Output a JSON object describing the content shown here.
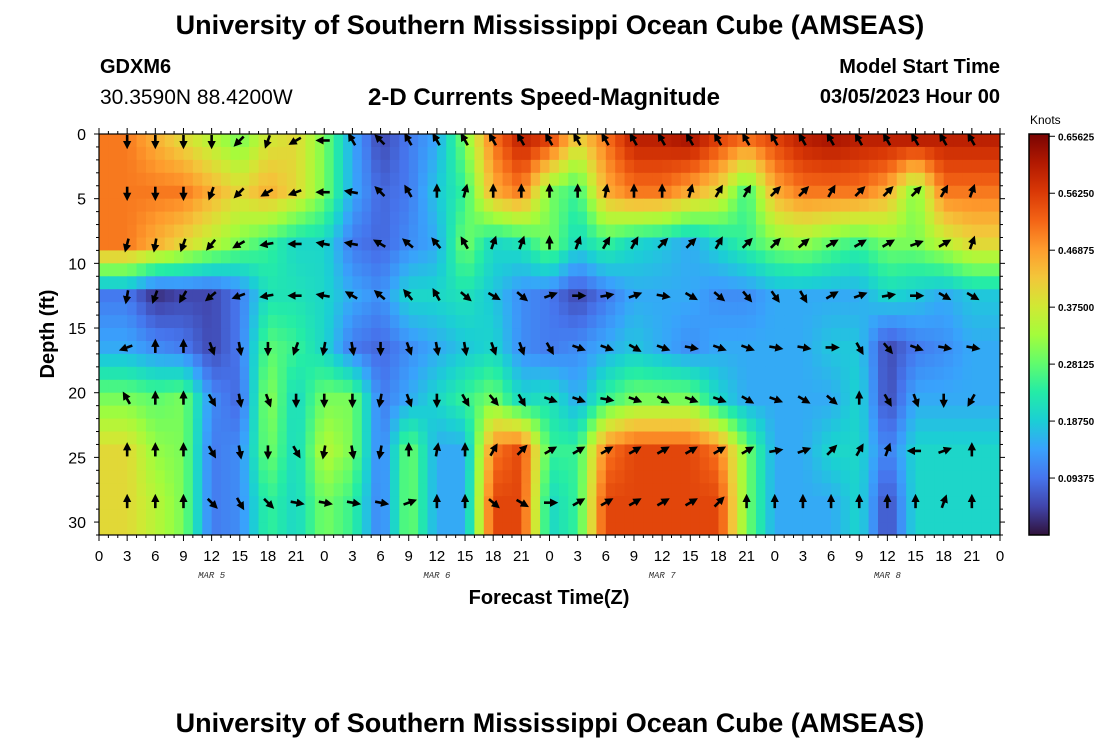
{
  "header": {
    "title": "University of Southern Mississippi Ocean Cube (AMSEAS)",
    "station_id": "GDXM6",
    "station_coords": "30.3590N  88.4200W",
    "chart_title": "2-D Currents Speed-Magnitude",
    "start_label": "Model Start Time",
    "start_value": "03/05/2023 Hour 00"
  },
  "footer": {
    "title": "University of Southern Mississippi Ocean Cube (AMSEAS)"
  },
  "colors": {
    "scale": [
      "#30123b",
      "#4145ab",
      "#4675ed",
      "#39a2fc",
      "#1bcfd4",
      "#24eca6",
      "#61fc6c",
      "#a4fc3b",
      "#d1e834",
      "#f3c63a",
      "#fe9b2d",
      "#f36315",
      "#d93806",
      "#b11901",
      "#7a0403"
    ]
  },
  "chart_data": {
    "type": "heatmap",
    "title": "2-D Currents Speed-Magnitude",
    "xlabel": "Forecast Time(Z)",
    "ylabel": "Depth (ft)",
    "x_ticks": [
      "0",
      "3",
      "6",
      "9",
      "12",
      "15",
      "18",
      "21",
      "0",
      "3",
      "6",
      "9",
      "12",
      "15",
      "18",
      "21",
      "0",
      "3",
      "6",
      "9",
      "12",
      "15",
      "18",
      "21",
      "0",
      "3",
      "6",
      "9",
      "12",
      "15",
      "18",
      "21",
      "0"
    ],
    "date_labels": [
      {
        "hour": 12,
        "label": "MAR 5"
      },
      {
        "hour": 36,
        "label": "MAR 6"
      },
      {
        "hour": 60,
        "label": "MAR 7"
      },
      {
        "hour": 84,
        "label": "MAR 8"
      }
    ],
    "xlim": [
      0,
      96
    ],
    "ylim": [
      0,
      31
    ],
    "y_ticks": [
      0,
      5,
      10,
      15,
      20,
      25,
      30
    ],
    "colorbar": {
      "label": "Knots",
      "min": 0,
      "max": 0.66,
      "ticks": [
        "0.65625",
        "0.56250",
        "0.46875",
        "0.37500",
        "0.28125",
        "0.18750",
        "0.09375"
      ]
    },
    "hours": [
      3,
      6,
      9,
      12,
      15,
      18,
      21,
      24,
      27,
      30,
      33,
      36,
      39,
      42,
      45,
      48,
      51,
      54,
      57,
      60,
      63,
      66,
      69,
      72,
      75,
      78,
      81,
      84,
      87,
      90,
      93
    ],
    "depths": [
      0.5,
      4.5,
      8.5,
      12.5,
      16.5,
      20.5,
      24.5,
      28.5
    ],
    "speed_knots": [
      [
        0.5,
        0.45,
        0.4,
        0.35,
        0.3,
        0.38,
        0.4,
        0.3,
        0.15,
        0.05,
        0.1,
        0.15,
        0.3,
        0.5,
        0.6,
        0.55,
        0.4,
        0.5,
        0.6,
        0.6,
        0.62,
        0.55,
        0.5,
        0.55,
        0.6,
        0.62,
        0.6,
        0.6,
        0.6,
        0.6,
        0.6
      ],
      [
        0.5,
        0.5,
        0.5,
        0.45,
        0.4,
        0.45,
        0.4,
        0.3,
        0.15,
        0.08,
        0.1,
        0.18,
        0.25,
        0.45,
        0.5,
        0.3,
        0.25,
        0.45,
        0.5,
        0.5,
        0.45,
        0.4,
        0.25,
        0.45,
        0.5,
        0.5,
        0.5,
        0.45,
        0.3,
        0.5,
        0.5
      ],
      [
        0.5,
        0.45,
        0.4,
        0.35,
        0.3,
        0.25,
        0.2,
        0.2,
        0.1,
        0.08,
        0.12,
        0.15,
        0.3,
        0.2,
        0.22,
        0.3,
        0.2,
        0.25,
        0.2,
        0.18,
        0.15,
        0.2,
        0.25,
        0.3,
        0.32,
        0.28,
        0.25,
        0.3,
        0.3,
        0.35,
        0.4
      ],
      [
        0.1,
        0.03,
        0.05,
        0.05,
        0.1,
        0.22,
        0.22,
        0.2,
        0.15,
        0.12,
        0.2,
        0.2,
        0.22,
        0.18,
        0.12,
        0.1,
        0.05,
        0.1,
        0.15,
        0.15,
        0.15,
        0.12,
        0.12,
        0.15,
        0.15,
        0.15,
        0.15,
        0.2,
        0.18,
        0.15,
        0.18
      ],
      [
        0.15,
        0.12,
        0.1,
        0.05,
        0.1,
        0.28,
        0.25,
        0.2,
        0.1,
        0.08,
        0.12,
        0.15,
        0.18,
        0.2,
        0.12,
        0.1,
        0.12,
        0.15,
        0.18,
        0.15,
        0.12,
        0.15,
        0.15,
        0.15,
        0.15,
        0.18,
        0.18,
        0.05,
        0.1,
        0.12,
        0.15
      ],
      [
        0.3,
        0.28,
        0.3,
        0.12,
        0.08,
        0.32,
        0.2,
        0.3,
        0.3,
        0.1,
        0.15,
        0.2,
        0.25,
        0.3,
        0.2,
        0.22,
        0.15,
        0.25,
        0.3,
        0.3,
        0.3,
        0.2,
        0.15,
        0.15,
        0.15,
        0.15,
        0.2,
        0.05,
        0.15,
        0.15,
        0.15
      ],
      [
        0.4,
        0.32,
        0.3,
        0.1,
        0.12,
        0.3,
        0.2,
        0.35,
        0.3,
        0.1,
        0.3,
        0.15,
        0.15,
        0.5,
        0.55,
        0.25,
        0.25,
        0.5,
        0.55,
        0.55,
        0.55,
        0.5,
        0.3,
        0.15,
        0.15,
        0.2,
        0.2,
        0.1,
        0.2,
        0.2,
        0.2
      ],
      [
        0.4,
        0.35,
        0.3,
        0.1,
        0.12,
        0.25,
        0.2,
        0.3,
        0.25,
        0.1,
        0.3,
        0.15,
        0.15,
        0.55,
        0.55,
        0.2,
        0.25,
        0.55,
        0.55,
        0.55,
        0.55,
        0.55,
        0.3,
        0.15,
        0.15,
        0.15,
        0.2,
        0.05,
        0.2,
        0.2,
        0.2
      ]
    ],
    "direction_deg": [
      [
        180,
        180,
        180,
        180,
        225,
        200,
        240,
        270,
        330,
        315,
        330,
        330,
        330,
        330,
        330,
        330,
        330,
        330,
        330,
        330,
        330,
        330,
        330,
        330,
        330,
        330,
        330,
        330,
        330,
        330,
        330
      ],
      [
        180,
        180,
        180,
        200,
        225,
        240,
        250,
        270,
        280,
        315,
        330,
        0,
        15,
        0,
        0,
        0,
        0,
        10,
        0,
        0,
        15,
        30,
        30,
        45,
        45,
        30,
        45,
        45,
        45,
        30,
        20
      ],
      [
        195,
        190,
        200,
        220,
        240,
        260,
        270,
        280,
        280,
        300,
        310,
        320,
        330,
        20,
        20,
        0,
        20,
        30,
        30,
        45,
        45,
        30,
        45,
        45,
        50,
        60,
        60,
        60,
        70,
        60,
        20
      ],
      [
        190,
        200,
        210,
        230,
        250,
        260,
        270,
        280,
        300,
        310,
        320,
        330,
        130,
        120,
        130,
        70,
        90,
        80,
        70,
        100,
        120,
        130,
        140,
        145,
        150,
        60,
        70,
        80,
        90,
        120,
        120
      ],
      [
        250,
        0,
        0,
        160,
        170,
        180,
        200,
        190,
        170,
        180,
        160,
        170,
        170,
        160,
        160,
        150,
        110,
        110,
        120,
        110,
        100,
        110,
        110,
        100,
        100,
        90,
        150,
        140,
        110,
        100,
        100
      ],
      [
        330,
        0,
        0,
        150,
        170,
        160,
        180,
        180,
        180,
        190,
        160,
        180,
        150,
        140,
        150,
        110,
        110,
        100,
        110,
        120,
        110,
        110,
        120,
        110,
        120,
        130,
        0,
        150,
        160,
        180,
        210
      ],
      [
        0,
        0,
        0,
        150,
        170,
        180,
        150,
        190,
        170,
        190,
        0,
        10,
        0,
        30,
        45,
        60,
        60,
        60,
        60,
        60,
        60,
        60,
        60,
        80,
        70,
        45,
        30,
        20,
        270,
        70,
        0
      ],
      [
        0,
        0,
        0,
        135,
        150,
        135,
        100,
        100,
        100,
        100,
        70,
        0,
        0,
        130,
        120,
        90,
        60,
        60,
        60,
        60,
        60,
        45,
        0,
        0,
        0,
        0,
        0,
        0,
        0,
        20,
        0
      ]
    ]
  }
}
